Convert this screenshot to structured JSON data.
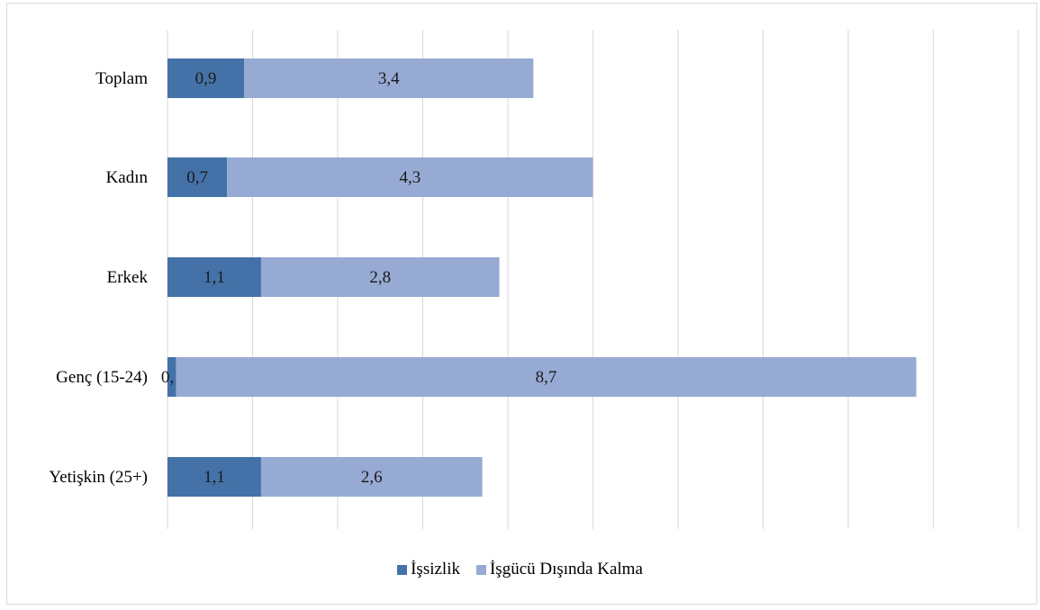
{
  "chart_data": {
    "type": "bar",
    "orientation": "horizontal",
    "stacked": true,
    "categories": [
      "Toplam",
      "Kadın",
      "Erkek",
      "Genç (15-24)",
      "Yetişkin (25+)"
    ],
    "series": [
      {
        "name": "İşsizlik",
        "values": [
          0.9,
          0.7,
          1.1,
          0.1,
          1.1
        ],
        "labels": [
          "0,9",
          "0,7",
          "1,1",
          "0,1",
          "1,1"
        ],
        "color": "#4472a8"
      },
      {
        "name": "İşgücü Dışında Kalma",
        "values": [
          3.4,
          4.3,
          2.8,
          8.7,
          2.6
        ],
        "labels": [
          "3,4",
          "4,3",
          "2,8",
          "8,7",
          "2,6"
        ],
        "color": "#97aad3"
      }
    ],
    "xlim": [
      0,
      10
    ],
    "grid": true,
    "legend_position": "bottom"
  }
}
